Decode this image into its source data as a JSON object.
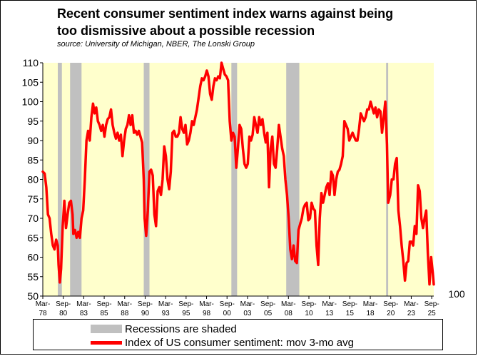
{
  "title_line1": "Recent consumer sentiment index warns against being",
  "title_line2": "too dismissive about a possible recession",
  "subtitle": "source: University of Michigan, NBER, The Lonski Group",
  "colors": {
    "plot_bg": "#ffffcc",
    "recession": "#c0c0c0",
    "line": "#ff0000",
    "axis": "#000000"
  },
  "legend": {
    "recession_label": "Recessions are shaded",
    "line_label": "Index of US consumer sentiment: mov 3-mo avg"
  },
  "chart_data": {
    "type": "line",
    "title": "Recent consumer sentiment index warns against being too dismissive about a possible recession",
    "ylim": [
      50,
      110
    ],
    "yticks": [
      50,
      55,
      60,
      65,
      70,
      75,
      80,
      85,
      90,
      95,
      100,
      105,
      110
    ],
    "xlim": [
      1978.17,
      2025.92
    ],
    "xticks": [
      {
        "t": 1978.17,
        "m": "Mar-",
        "y": "78"
      },
      {
        "t": 1980.67,
        "m": "Sep-",
        "y": "80"
      },
      {
        "t": 1983.17,
        "m": "Mar-",
        "y": "83"
      },
      {
        "t": 1985.67,
        "m": "Sep-",
        "y": "85"
      },
      {
        "t": 1988.17,
        "m": "Mar-",
        "y": "88"
      },
      {
        "t": 1990.67,
        "m": "Sep-",
        "y": "90"
      },
      {
        "t": 1993.17,
        "m": "Mar-",
        "y": "93"
      },
      {
        "t": 1995.67,
        "m": "Sep-",
        "y": "95"
      },
      {
        "t": 1998.17,
        "m": "Mar-",
        "y": "98"
      },
      {
        "t": 2000.67,
        "m": "Sep-",
        "y": "00"
      },
      {
        "t": 2003.17,
        "m": "Mar-",
        "y": "03"
      },
      {
        "t": 2005.67,
        "m": "Sep-",
        "y": "05"
      },
      {
        "t": 2008.17,
        "m": "Mar-",
        "y": "08"
      },
      {
        "t": 2010.67,
        "m": "Sep-",
        "y": "10"
      },
      {
        "t": 2013.17,
        "m": "Mar-",
        "y": "13"
      },
      {
        "t": 2015.67,
        "m": "Sep-",
        "y": "15"
      },
      {
        "t": 2018.17,
        "m": "Mar-",
        "y": "18"
      },
      {
        "t": 2020.67,
        "m": "Sep-",
        "y": "20"
      },
      {
        "t": 2023.17,
        "m": "Mar-",
        "y": "23"
      },
      {
        "t": 2025.67,
        "m": "Sep-",
        "y": "25"
      }
    ],
    "right_annotation": "100",
    "recessions": [
      [
        1980.0,
        1980.5
      ],
      [
        1981.5,
        1982.9
      ],
      [
        1990.5,
        1991.2
      ],
      [
        2001.2,
        2001.9
      ],
      [
        2007.9,
        2009.5
      ],
      [
        2020.1,
        2020.35
      ]
    ],
    "series": [
      {
        "name": "Index of US consumer sentiment: mov 3-mo avg",
        "points": [
          [
            1978.17,
            82
          ],
          [
            1978.4,
            81.5
          ],
          [
            1978.6,
            78
          ],
          [
            1978.8,
            71
          ],
          [
            1979.0,
            70
          ],
          [
            1979.2,
            66
          ],
          [
            1979.4,
            63
          ],
          [
            1979.6,
            62
          ],
          [
            1979.8,
            64.5
          ],
          [
            1980.0,
            63
          ],
          [
            1980.1,
            58
          ],
          [
            1980.25,
            53.5
          ],
          [
            1980.4,
            57
          ],
          [
            1980.6,
            68
          ],
          [
            1980.8,
            74.5
          ],
          [
            1981.0,
            67.5
          ],
          [
            1981.2,
            71
          ],
          [
            1981.4,
            74
          ],
          [
            1981.6,
            74.5
          ],
          [
            1981.8,
            71
          ],
          [
            1981.9,
            66
          ],
          [
            1982.1,
            67
          ],
          [
            1982.3,
            65
          ],
          [
            1982.5,
            66.5
          ],
          [
            1982.7,
            65
          ],
          [
            1982.9,
            70
          ],
          [
            1983.1,
            72
          ],
          [
            1983.3,
            80
          ],
          [
            1983.5,
            90
          ],
          [
            1983.7,
            92.5
          ],
          [
            1983.9,
            90
          ],
          [
            1984.1,
            96
          ],
          [
            1984.3,
            99.5
          ],
          [
            1984.5,
            97
          ],
          [
            1984.7,
            98.5
          ],
          [
            1984.9,
            95
          ],
          [
            1985.1,
            94
          ],
          [
            1985.3,
            92.5
          ],
          [
            1985.5,
            94
          ],
          [
            1985.7,
            91
          ],
          [
            1985.9,
            94
          ],
          [
            1986.1,
            95.5
          ],
          [
            1986.3,
            96
          ],
          [
            1986.5,
            98
          ],
          [
            1986.7,
            94
          ],
          [
            1986.9,
            92
          ],
          [
            1987.1,
            90.5
          ],
          [
            1987.3,
            92
          ],
          [
            1987.5,
            90
          ],
          [
            1987.7,
            91.5
          ],
          [
            1987.9,
            86
          ],
          [
            1988.1,
            90
          ],
          [
            1988.3,
            93
          ],
          [
            1988.5,
            94
          ],
          [
            1988.7,
            96.5
          ],
          [
            1988.9,
            94
          ],
          [
            1989.1,
            96.5
          ],
          [
            1989.3,
            92
          ],
          [
            1989.5,
            92.5
          ],
          [
            1989.7,
            91.5
          ],
          [
            1989.9,
            92.5
          ],
          [
            1990.1,
            91
          ],
          [
            1990.3,
            89.5
          ],
          [
            1990.5,
            80
          ],
          [
            1990.6,
            70
          ],
          [
            1990.8,
            65.5
          ],
          [
            1991.0,
            72
          ],
          [
            1991.2,
            82
          ],
          [
            1991.4,
            82.5
          ],
          [
            1991.6,
            81
          ],
          [
            1991.8,
            71
          ],
          [
            1992.0,
            68
          ],
          [
            1992.2,
            77
          ],
          [
            1992.4,
            78
          ],
          [
            1992.6,
            76
          ],
          [
            1992.8,
            80
          ],
          [
            1993.0,
            88.5
          ],
          [
            1993.2,
            86
          ],
          [
            1993.4,
            80
          ],
          [
            1993.6,
            77.5
          ],
          [
            1993.8,
            82
          ],
          [
            1994.0,
            92
          ],
          [
            1994.2,
            92.5
          ],
          [
            1994.4,
            91
          ],
          [
            1994.6,
            91
          ],
          [
            1994.8,
            92
          ],
          [
            1995.0,
            96
          ],
          [
            1995.2,
            93
          ],
          [
            1995.4,
            92
          ],
          [
            1995.6,
            94
          ],
          [
            1995.8,
            89
          ],
          [
            1996.0,
            90
          ],
          [
            1996.2,
            92
          ],
          [
            1996.4,
            95
          ],
          [
            1996.6,
            94
          ],
          [
            1996.8,
            96
          ],
          [
            1997.0,
            98
          ],
          [
            1997.2,
            101
          ],
          [
            1997.4,
            104
          ],
          [
            1997.6,
            106
          ],
          [
            1997.8,
            105.5
          ],
          [
            1998.0,
            106.5
          ],
          [
            1998.2,
            108
          ],
          [
            1998.4,
            106.5
          ],
          [
            1998.6,
            102
          ],
          [
            1998.8,
            100.5
          ],
          [
            1999.0,
            104
          ],
          [
            1999.2,
            106
          ],
          [
            1999.4,
            105.5
          ],
          [
            1999.6,
            106.5
          ],
          [
            1999.8,
            106
          ],
          [
            2000.0,
            110
          ],
          [
            2000.2,
            108.5
          ],
          [
            2000.4,
            107
          ],
          [
            2000.6,
            106.5
          ],
          [
            2000.8,
            105.5
          ],
          [
            2001.0,
            95
          ],
          [
            2001.2,
            90
          ],
          [
            2001.4,
            92
          ],
          [
            2001.6,
            91
          ],
          [
            2001.8,
            83
          ],
          [
            2002.0,
            88
          ],
          [
            2002.2,
            94
          ],
          [
            2002.4,
            93
          ],
          [
            2002.6,
            88
          ],
          [
            2002.8,
            84
          ],
          [
            2003.0,
            83
          ],
          [
            2003.2,
            84
          ],
          [
            2003.4,
            91
          ],
          [
            2003.6,
            90
          ],
          [
            2003.8,
            91.5
          ],
          [
            2004.0,
            96
          ],
          [
            2004.2,
            94
          ],
          [
            2004.4,
            92
          ],
          [
            2004.6,
            96
          ],
          [
            2004.8,
            94
          ],
          [
            2005.0,
            95.5
          ],
          [
            2005.2,
            92
          ],
          [
            2005.4,
            89.5
          ],
          [
            2005.6,
            92
          ],
          [
            2005.8,
            78
          ],
          [
            2006.0,
            88
          ],
          [
            2006.2,
            91
          ],
          [
            2006.4,
            84
          ],
          [
            2006.6,
            83
          ],
          [
            2006.8,
            88
          ],
          [
            2007.0,
            94
          ],
          [
            2007.2,
            91
          ],
          [
            2007.4,
            88
          ],
          [
            2007.6,
            86
          ],
          [
            2007.8,
            80
          ],
          [
            2008.0,
            76
          ],
          [
            2008.2,
            70
          ],
          [
            2008.4,
            62
          ],
          [
            2008.6,
            59.5
          ],
          [
            2008.8,
            63
          ],
          [
            2009.0,
            59
          ],
          [
            2009.2,
            58.5
          ],
          [
            2009.4,
            67
          ],
          [
            2009.6,
            68.5
          ],
          [
            2009.8,
            70
          ],
          [
            2010.0,
            72.5
          ],
          [
            2010.2,
            73.5
          ],
          [
            2010.4,
            74
          ],
          [
            2010.6,
            69.5
          ],
          [
            2010.8,
            70
          ],
          [
            2011.0,
            74
          ],
          [
            2011.2,
            72.5
          ],
          [
            2011.4,
            72
          ],
          [
            2011.6,
            63
          ],
          [
            2011.8,
            58
          ],
          [
            2012.0,
            70
          ],
          [
            2012.2,
            76.5
          ],
          [
            2012.4,
            74
          ],
          [
            2012.6,
            76
          ],
          [
            2012.8,
            78
          ],
          [
            2013.0,
            79
          ],
          [
            2013.2,
            76
          ],
          [
            2013.4,
            82
          ],
          [
            2013.6,
            81
          ],
          [
            2013.8,
            76
          ],
          [
            2014.0,
            80
          ],
          [
            2014.2,
            82
          ],
          [
            2014.4,
            82.5
          ],
          [
            2014.6,
            84
          ],
          [
            2014.8,
            86
          ],
          [
            2015.0,
            95
          ],
          [
            2015.2,
            94
          ],
          [
            2015.4,
            93
          ],
          [
            2015.6,
            90
          ],
          [
            2015.8,
            91
          ],
          [
            2016.0,
            92
          ],
          [
            2016.2,
            91
          ],
          [
            2016.4,
            90
          ],
          [
            2016.6,
            90
          ],
          [
            2016.8,
            93
          ],
          [
            2017.0,
            97
          ],
          [
            2017.2,
            96
          ],
          [
            2017.4,
            95
          ],
          [
            2017.6,
            96
          ],
          [
            2017.8,
            98
          ],
          [
            2018.0,
            98
          ],
          [
            2018.2,
            100
          ],
          [
            2018.4,
            98.5
          ],
          [
            2018.6,
            97
          ],
          [
            2018.8,
            98.5
          ],
          [
            2019.0,
            96
          ],
          [
            2019.2,
            98
          ],
          [
            2019.4,
            97.5
          ],
          [
            2019.6,
            92
          ],
          [
            2019.8,
            96
          ],
          [
            2020.0,
            100
          ],
          [
            2020.2,
            89
          ],
          [
            2020.35,
            74
          ],
          [
            2020.6,
            76
          ],
          [
            2020.8,
            80
          ],
          [
            2021.0,
            80
          ],
          [
            2021.2,
            84
          ],
          [
            2021.4,
            85.5
          ],
          [
            2021.6,
            72
          ],
          [
            2021.8,
            68
          ],
          [
            2022.0,
            63
          ],
          [
            2022.2,
            59
          ],
          [
            2022.4,
            54
          ],
          [
            2022.6,
            58.5
          ],
          [
            2022.8,
            59
          ],
          [
            2023.0,
            64
          ],
          [
            2023.2,
            64
          ],
          [
            2023.4,
            63
          ],
          [
            2023.6,
            68
          ],
          [
            2023.8,
            66
          ],
          [
            2024.0,
            78.5
          ],
          [
            2024.2,
            77
          ],
          [
            2024.4,
            70
          ],
          [
            2024.6,
            67.5
          ],
          [
            2024.8,
            70
          ],
          [
            2025.0,
            72
          ],
          [
            2025.2,
            61
          ],
          [
            2025.4,
            53
          ],
          [
            2025.6,
            60
          ],
          [
            2025.8,
            56
          ],
          [
            2025.92,
            53
          ]
        ]
      }
    ]
  }
}
